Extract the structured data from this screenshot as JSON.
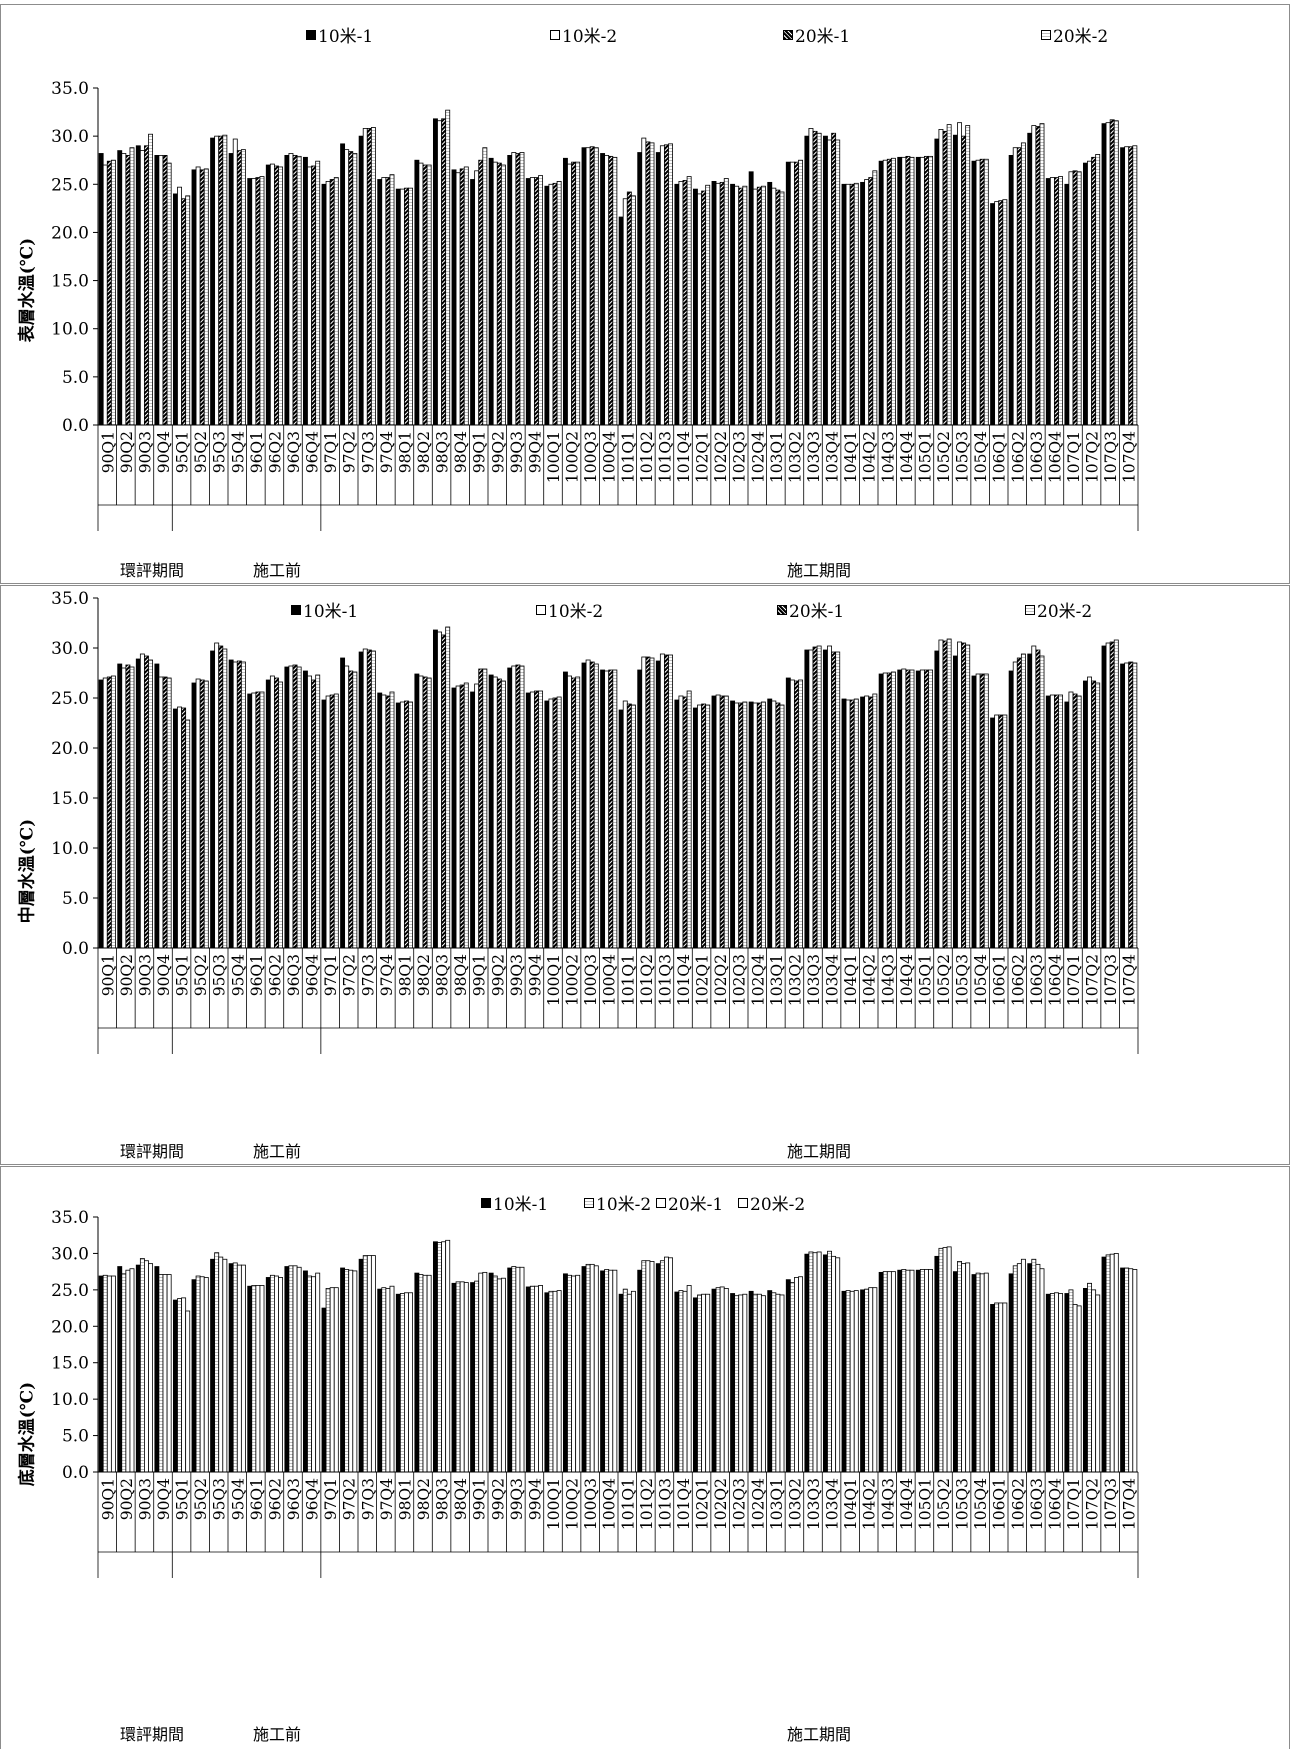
{
  "quarters": [
    "90Q1",
    "90Q2",
    "90Q3",
    "90Q4",
    "95Q1",
    "95Q2",
    "95Q3",
    "95Q4",
    "96Q1",
    "96Q2",
    "96Q3",
    "96Q4",
    "97Q1",
    "97Q2",
    "97Q3",
    "97Q4",
    "98Q1",
    "98Q2",
    "98Q3",
    "98Q4",
    "99Q1",
    "99Q2",
    "99Q3",
    "99Q4",
    "100Q1",
    "100Q2",
    "100Q3",
    "100Q4",
    "101Q1",
    "101Q2",
    "101Q3",
    "101Q4",
    "102Q1",
    "102Q2",
    "102Q3",
    "102Q4",
    "103Q1",
    "103Q2",
    "103Q3",
    "103Q4",
    "104Q1",
    "104Q2",
    "104Q3",
    "104Q4",
    "105Q1",
    "105Q2",
    "105Q3",
    "105Q4",
    "106Q1",
    "106Q2",
    "106Q3",
    "106Q4",
    "107Q1",
    "107Q2",
    "107Q3",
    "107Q4"
  ],
  "periods": [
    {
      "label": "環評期間",
      "from": 0,
      "to": 3
    },
    {
      "label": "施工前",
      "from": 4,
      "to": 11
    },
    {
      "label": "施工期間",
      "from": 12,
      "to": 55
    }
  ],
  "legend_labels": [
    "10米-1",
    "10米-2",
    "20米-1",
    "20米-2"
  ],
  "colors": {
    "solid": "#000000",
    "light": "#ffffff",
    "dark": "#3a3a3a",
    "frame": "#8c8c8c"
  },
  "chart_data": [
    {
      "type": "bar",
      "ylabel": "表層水溫(℃)",
      "ylim": [
        0,
        35
      ],
      "yticks": [
        "0.0",
        "5.0",
        "10.0",
        "15.0",
        "20.0",
        "25.0",
        "30.0",
        "35.0"
      ],
      "grid": false,
      "legend_position": "top",
      "series": [
        {
          "name": "10米-1",
          "values": [
            28.2,
            28.5,
            29.0,
            28.0,
            24.0,
            26.5,
            29.8,
            28.2,
            25.6,
            27.0,
            28.0,
            27.8,
            25.0,
            29.2,
            30.0,
            25.5,
            24.5,
            27.5,
            31.8,
            26.5,
            25.5,
            27.7,
            28.0,
            25.6,
            24.8,
            27.7,
            28.8,
            28.2,
            21.6,
            28.3,
            28.3,
            25.0,
            24.5,
            25.3,
            25.0,
            26.3,
            25.2,
            27.3,
            30.0,
            30.0,
            25.0,
            25.2,
            27.4,
            27.8,
            27.8,
            29.7,
            30.1,
            27.4,
            23.0,
            28.0,
            30.3,
            25.6,
            25.0,
            27.2,
            31.3,
            28.8
          ]
        },
        {
          "name": "10米-2",
          "values": [
            27.0,
            28.2,
            28.5,
            28.0,
            24.7,
            26.8,
            30.0,
            29.7,
            25.6,
            27.1,
            28.2,
            26.8,
            25.3,
            28.6,
            30.8,
            25.7,
            24.5,
            27.2,
            31.6,
            26.2,
            26.4,
            27.3,
            28.3,
            25.7,
            25.0,
            27.1,
            28.8,
            28.0,
            23.5,
            29.8,
            29.0,
            25.3,
            24.0,
            25.1,
            24.8,
            24.5,
            24.6,
            27.3,
            30.8,
            29.6,
            25.0,
            25.5,
            27.5,
            27.8,
            27.8,
            30.7,
            31.4,
            27.5,
            23.2,
            28.8,
            31.1,
            25.7,
            26.3,
            27.4,
            31.4,
            28.9
          ]
        },
        {
          "name": "20米-1",
          "values": [
            27.4,
            28.0,
            29.0,
            28.0,
            23.5,
            26.5,
            30.0,
            28.5,
            25.7,
            26.9,
            28.0,
            26.9,
            25.5,
            28.4,
            30.8,
            25.7,
            24.6,
            27.0,
            31.8,
            26.6,
            27.5,
            27.2,
            28.2,
            25.7,
            25.1,
            27.3,
            28.9,
            27.9,
            24.2,
            29.4,
            29.1,
            25.4,
            24.3,
            25.2,
            24.6,
            24.7,
            24.4,
            27.3,
            30.5,
            30.3,
            25.0,
            25.7,
            27.6,
            27.9,
            27.9,
            30.5,
            30.0,
            27.6,
            23.3,
            28.8,
            31.0,
            25.7,
            26.4,
            27.8,
            31.7,
            28.9
          ]
        },
        {
          "name": "20米-2",
          "values": [
            27.5,
            28.8,
            30.2,
            27.2,
            23.8,
            26.6,
            30.1,
            28.6,
            25.8,
            26.8,
            27.9,
            27.4,
            25.7,
            28.2,
            30.9,
            26.0,
            24.6,
            27.0,
            32.7,
            26.8,
            28.8,
            27.0,
            28.3,
            25.9,
            25.3,
            27.3,
            28.8,
            27.8,
            23.8,
            29.3,
            29.2,
            25.8,
            24.9,
            25.6,
            24.8,
            24.8,
            24.2,
            27.5,
            30.3,
            29.6,
            25.1,
            26.4,
            27.7,
            27.8,
            27.9,
            31.2,
            31.1,
            27.6,
            23.4,
            29.3,
            31.3,
            25.8,
            26.3,
            28.1,
            31.6,
            29.0
          ]
        }
      ]
    },
    {
      "type": "bar",
      "ylabel": "中層水溫(℃)",
      "ylim": [
        0,
        35
      ],
      "yticks": [
        "0.0",
        "5.0",
        "10.0",
        "15.0",
        "20.0",
        "25.0",
        "30.0",
        "35.0"
      ],
      "grid": false,
      "legend_position": "top",
      "series": [
        {
          "name": "10米-1",
          "values": [
            26.8,
            28.4,
            28.9,
            28.4,
            23.9,
            26.5,
            29.7,
            28.8,
            25.4,
            26.8,
            28.1,
            27.7,
            24.8,
            29.0,
            29.6,
            25.5,
            24.5,
            27.4,
            31.8,
            26.0,
            25.6,
            27.3,
            28.0,
            25.5,
            24.7,
            27.6,
            28.5,
            27.8,
            23.8,
            27.8,
            28.7,
            24.8,
            24.0,
            25.2,
            24.7,
            24.6,
            24.9,
            27.0,
            29.8,
            29.8,
            24.9,
            25.1,
            27.4,
            27.8,
            27.7,
            29.7,
            29.2,
            27.2,
            23.0,
            27.7,
            29.4,
            25.2,
            24.6,
            26.7,
            30.2,
            28.4
          ]
        },
        {
          "name": "10米-2",
          "values": [
            27.0,
            28.0,
            29.4,
            27.1,
            24.1,
            26.9,
            30.5,
            28.6,
            25.5,
            27.2,
            28.2,
            27.2,
            25.2,
            28.2,
            29.9,
            25.3,
            24.6,
            27.2,
            31.6,
            26.2,
            26.4,
            27.1,
            28.2,
            25.6,
            24.9,
            27.2,
            28.8,
            27.7,
            24.7,
            29.1,
            29.4,
            25.2,
            24.3,
            25.3,
            24.5,
            24.5,
            24.7,
            26.8,
            29.8,
            30.2,
            24.8,
            25.2,
            27.5,
            27.9,
            27.8,
            30.8,
            30.6,
            27.4,
            23.3,
            28.6,
            30.2,
            25.3,
            25.6,
            27.1,
            30.5,
            28.5
          ]
        },
        {
          "name": "20米-1",
          "values": [
            27.1,
            28.3,
            29.2,
            27.1,
            24.0,
            26.8,
            30.2,
            28.7,
            25.6,
            27.0,
            28.3,
            26.8,
            25.3,
            27.7,
            29.8,
            25.2,
            24.7,
            27.1,
            31.3,
            26.3,
            27.9,
            26.9,
            28.3,
            25.7,
            25.0,
            27.0,
            28.6,
            27.8,
            24.4,
            29.1,
            29.3,
            25.1,
            24.4,
            25.2,
            24.5,
            24.5,
            24.5,
            26.7,
            30.1,
            29.6,
            24.8,
            25.1,
            27.5,
            27.8,
            27.8,
            30.7,
            30.5,
            27.4,
            23.3,
            29.0,
            29.8,
            25.3,
            25.4,
            26.7,
            30.6,
            28.6
          ]
        },
        {
          "name": "20米-2",
          "values": [
            27.2,
            28.1,
            28.8,
            27.0,
            22.8,
            26.7,
            29.9,
            28.6,
            25.6,
            26.6,
            28.1,
            27.3,
            25.4,
            27.6,
            29.7,
            25.6,
            24.6,
            27.0,
            32.1,
            26.5,
            27.9,
            26.7,
            28.2,
            25.7,
            25.1,
            27.1,
            28.4,
            27.8,
            24.3,
            29.0,
            29.3,
            25.7,
            24.3,
            25.2,
            24.6,
            24.6,
            24.3,
            26.8,
            30.2,
            29.6,
            24.9,
            25.4,
            27.6,
            27.8,
            27.8,
            30.9,
            30.3,
            27.4,
            23.3,
            29.4,
            29.2,
            25.3,
            25.2,
            26.5,
            30.8,
            28.5
          ]
        }
      ]
    },
    {
      "type": "bar",
      "ylabel": "底層水溫(℃)",
      "ylim": [
        0,
        35
      ],
      "yticks": [
        "0.0",
        "5.0",
        "10.0",
        "15.0",
        "20.0",
        "25.0",
        "30.0",
        "35.0"
      ],
      "grid": false,
      "legend_position": "top",
      "series": [
        {
          "name": "10米-1",
          "values": [
            26.9,
            28.2,
            28.4,
            28.2,
            23.6,
            26.4,
            29.2,
            28.6,
            25.5,
            26.7,
            28.2,
            27.6,
            22.5,
            28.0,
            29.2,
            25.1,
            24.4,
            27.3,
            31.6,
            25.9,
            26.0,
            27.3,
            28.0,
            25.4,
            24.6,
            27.2,
            28.2,
            27.6,
            24.4,
            27.7,
            28.6,
            24.7,
            23.9,
            25.1,
            24.5,
            24.8,
            24.9,
            26.4,
            29.9,
            29.8,
            24.8,
            25.0,
            27.4,
            27.7,
            27.7,
            29.6,
            27.5,
            27.1,
            23.0,
            27.2,
            28.6,
            24.4,
            24.5,
            25.2,
            29.5,
            28.0
          ]
        },
        {
          "name": "10米-2",
          "values": [
            27.0,
            27.2,
            29.3,
            27.1,
            23.8,
            26.9,
            30.1,
            28.7,
            25.6,
            27.0,
            28.3,
            26.9,
            25.2,
            27.8,
            29.7,
            25.3,
            24.5,
            27.1,
            31.5,
            26.1,
            26.2,
            26.9,
            28.2,
            25.5,
            24.8,
            27.0,
            28.5,
            27.8,
            25.1,
            29.0,
            29.0,
            24.9,
            24.3,
            25.3,
            24.2,
            24.4,
            24.6,
            26.0,
            30.2,
            30.3,
            24.9,
            25.1,
            27.5,
            27.8,
            27.8,
            30.7,
            28.9,
            27.3,
            23.2,
            28.3,
            29.2,
            24.5,
            25.0,
            25.9,
            29.8,
            28.0
          ]
        },
        {
          "name": "20米-1",
          "values": [
            26.9,
            27.7,
            29.0,
            27.1,
            23.9,
            26.8,
            29.5,
            28.4,
            25.6,
            26.9,
            28.3,
            26.8,
            25.3,
            27.7,
            29.7,
            25.2,
            24.6,
            27.0,
            31.6,
            26.1,
            27.3,
            26.5,
            28.1,
            25.5,
            24.8,
            26.9,
            28.5,
            27.7,
            24.4,
            29.0,
            29.5,
            24.8,
            24.4,
            25.4,
            24.3,
            24.4,
            24.4,
            26.7,
            30.1,
            29.6,
            24.8,
            25.3,
            27.5,
            27.7,
            27.8,
            30.8,
            28.6,
            27.2,
            23.2,
            28.6,
            28.5,
            24.6,
            23.0,
            25.0,
            29.9,
            27.9
          ]
        },
        {
          "name": "20米-2",
          "values": [
            26.9,
            27.9,
            28.6,
            27.1,
            22.1,
            26.7,
            29.2,
            28.4,
            25.6,
            26.7,
            28.1,
            27.3,
            25.3,
            27.6,
            29.7,
            25.5,
            24.6,
            27.0,
            31.8,
            26.0,
            27.4,
            26.6,
            28.1,
            25.6,
            24.9,
            27.0,
            28.3,
            27.7,
            24.8,
            28.9,
            29.4,
            25.6,
            24.4,
            25.2,
            24.4,
            24.2,
            24.3,
            26.8,
            30.2,
            29.4,
            24.9,
            25.3,
            27.5,
            27.7,
            27.8,
            30.9,
            28.7,
            27.3,
            23.2,
            29.2,
            27.9,
            24.5,
            22.8,
            24.3,
            30.0,
            27.8
          ]
        }
      ]
    }
  ]
}
